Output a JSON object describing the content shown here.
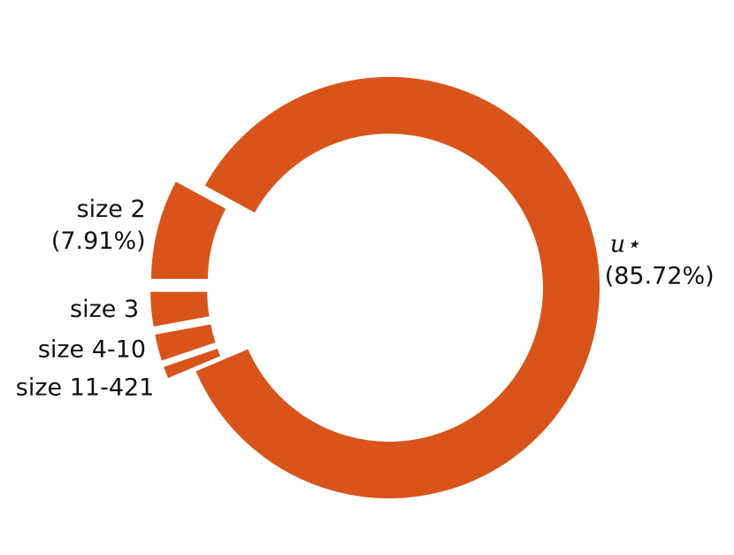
{
  "chart_data": {
    "type": "donut",
    "categories": [
      "u⋆",
      "size 2",
      "size 3",
      "size 4-10",
      "size 11-421"
    ],
    "values": [
      85.72,
      7.91,
      2.9,
      2.3,
      1.17
    ],
    "value_labels": [
      "(85.72%)",
      "(7.91%)",
      null,
      null,
      null
    ],
    "color": "#d9541a"
  }
}
